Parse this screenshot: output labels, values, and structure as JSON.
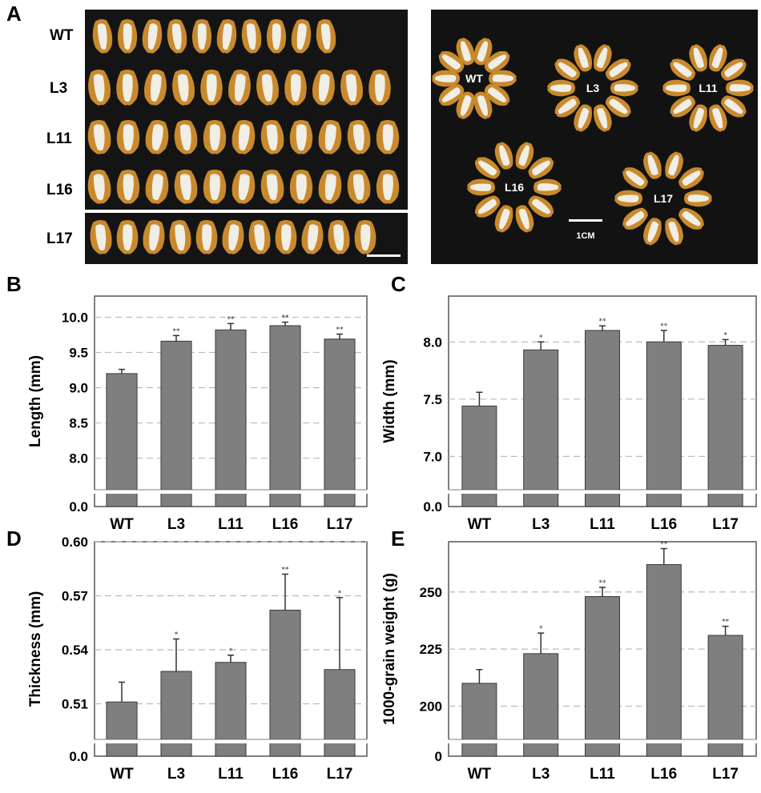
{
  "panels": {
    "a": "A",
    "b": "B",
    "c": "C",
    "d": "D",
    "e": "E"
  },
  "photo_left": {
    "rows": [
      "WT",
      "L3",
      "L11",
      "L16",
      "L17"
    ]
  },
  "photo_right": {
    "rings": [
      "WT",
      "L3",
      "L11",
      "L16",
      "L17"
    ],
    "scale_label": "1CM"
  },
  "chart_data": [
    {
      "id": "B",
      "type": "bar",
      "ylabel": "Length (mm)",
      "categories": [
        "WT",
        "L3",
        "L11",
        "L16",
        "L17"
      ],
      "values": [
        9.2,
        9.66,
        9.82,
        9.88,
        9.69
      ],
      "errors": [
        0.06,
        0.08,
        0.09,
        0.05,
        0.07
      ],
      "significance": [
        "",
        "**",
        "**",
        "**",
        "**"
      ],
      "yticks": [
        "0.0",
        "8.0",
        "8.5",
        "9.0",
        "9.5",
        "10.0"
      ],
      "ylim": [
        7.7,
        10.3
      ],
      "axis_break": true,
      "grid": true
    },
    {
      "id": "C",
      "type": "bar",
      "ylabel": "Width (mm)",
      "categories": [
        "WT",
        "L3",
        "L11",
        "L16",
        "L17"
      ],
      "values": [
        7.44,
        7.93,
        8.1,
        8.0,
        7.97
      ],
      "errors": [
        0.12,
        0.07,
        0.04,
        0.1,
        0.05
      ],
      "significance": [
        "",
        "*",
        "**",
        "**",
        "*"
      ],
      "yticks": [
        "0.0",
        "7.0",
        "7.5",
        "8.0"
      ],
      "ylim": [
        6.8,
        8.4
      ],
      "axis_break": true,
      "grid": true
    },
    {
      "id": "D",
      "type": "bar",
      "ylabel": "Thickness (mm)",
      "categories": [
        "WT",
        "L3",
        "L11",
        "L16",
        "L17"
      ],
      "values": [
        0.511,
        0.528,
        0.533,
        0.562,
        0.529
      ],
      "errors": [
        0.011,
        0.018,
        0.004,
        0.02,
        0.04
      ],
      "significance": [
        "",
        "*",
        "*",
        "**",
        "*"
      ],
      "yticks": [
        "0.0",
        "0.51",
        "0.54",
        "0.57",
        "0.60"
      ],
      "ylim": [
        0.496,
        0.6
      ],
      "axis_break": true,
      "grid": true
    },
    {
      "id": "E",
      "type": "bar",
      "ylabel": "1000-grain weight (g)",
      "categories": [
        "WT",
        "L3",
        "L11",
        "L16",
        "L17"
      ],
      "values": [
        210,
        223,
        248,
        262,
        231
      ],
      "errors": [
        6,
        9,
        4,
        7,
        4
      ],
      "significance": [
        "",
        "*",
        "**",
        "**",
        "**"
      ],
      "yticks": [
        "0",
        "200",
        "225",
        "250"
      ],
      "ylim": [
        190,
        272
      ],
      "axis_break": true,
      "grid": true
    }
  ]
}
